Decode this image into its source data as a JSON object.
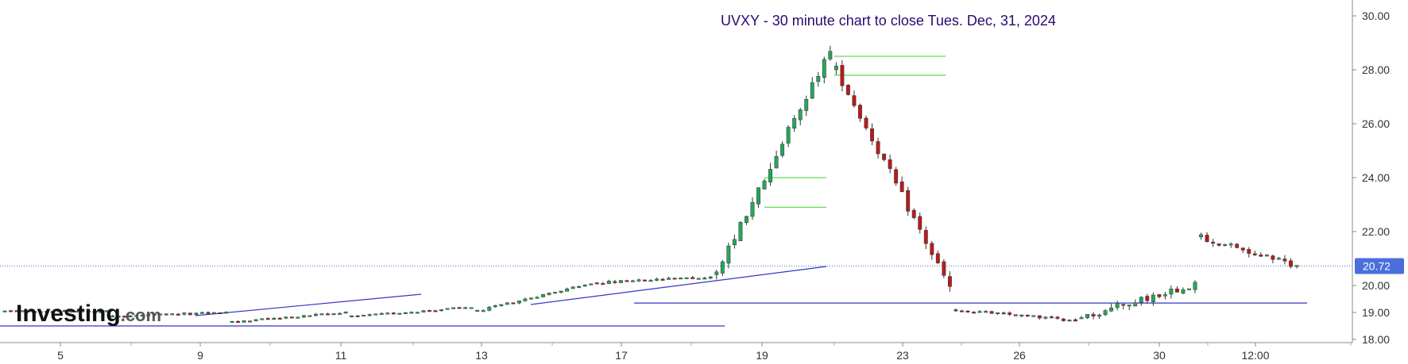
{
  "chart_data": {
    "type": "candlestick",
    "title": "UVXY - 30 minute chart to close Tues. Dec, 31, 2024",
    "logo": "Investing.com",
    "y_ticks": [
      "18.00",
      "19.00",
      "20.00",
      "22.00",
      "24.00",
      "26.00",
      "28.00",
      "30.00"
    ],
    "y_tick_values": [
      18,
      19,
      20,
      22,
      24,
      26,
      28,
      30
    ],
    "ylim": [
      18,
      30
    ],
    "x_ticks": [
      "5",
      "9",
      "11",
      "13",
      "17",
      "19",
      "23",
      "26",
      "30",
      "12:00"
    ],
    "last_price": "20.72",
    "last_price_value": 20.72,
    "colors": {
      "up": "#26a65b",
      "down": "#b71c1c",
      "trendline": "#3333cc",
      "resistance": "#66dd55",
      "price_tag": "#4a6fdc"
    },
    "resistance_levels": [
      28.5,
      27.8,
      24.0,
      22.9
    ],
    "support_levels": [
      19.35,
      18.5
    ],
    "segments": [
      {
        "n": 18,
        "start": 19.05,
        "end": 19.05,
        "vol": 0.06
      },
      {
        "n": 20,
        "start": 18.85,
        "end": 19.0,
        "vol": 0.08
      },
      {
        "n": 20,
        "start": 18.65,
        "end": 19.0,
        "vol": 0.07
      },
      {
        "n": 21,
        "start": 18.85,
        "end": 19.2,
        "vol": 0.07
      },
      {
        "n": 20,
        "start": 19.05,
        "end": 20.1,
        "vol": 0.08
      },
      {
        "n": 20,
        "start": 20.1,
        "end": 20.3,
        "vol": 0.1
      },
      {
        "n": 20,
        "start": 20.4,
        "end": 28.8,
        "vol": 0.4
      },
      {
        "n": 20,
        "start": 28.0,
        "end": 19.9,
        "vol": 0.35
      },
      {
        "n": 21,
        "start": 19.1,
        "end": 18.7,
        "vol": 0.1
      },
      {
        "n": 20,
        "start": 18.8,
        "end": 20.1,
        "vol": 0.3
      },
      {
        "n": 17,
        "start": 21.8,
        "end": 20.7,
        "vol": 0.25
      }
    ]
  }
}
